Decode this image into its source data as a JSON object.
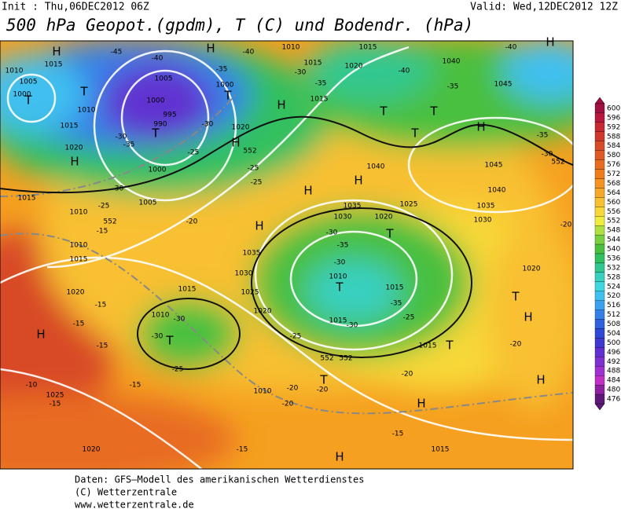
{
  "header": {
    "init": "Init : Thu,06DEC2012 06Z",
    "valid": "Valid: Wed,12DEC2012 12Z",
    "title": "500 hPa Geopot.(gpdm), T (C) und Bodendr. (hPa)"
  },
  "map": {
    "labels": [
      "H",
      "T",
      "T",
      "T",
      "H",
      "T",
      "H",
      "H",
      "H",
      "H",
      "H",
      "H",
      "T",
      "T",
      "T",
      "H",
      "T",
      "H",
      "H",
      "T",
      "T",
      "H",
      "H",
      "H",
      "T",
      "T",
      "T",
      "H",
      "1010",
      "1005",
      "1000",
      "1015",
      "1010",
      "1015",
      "1020",
      "1015",
      "1010",
      "1010",
      "1015",
      "1020",
      "1025",
      "1020",
      "1005",
      "1000",
      "995",
      "990",
      "1000",
      "1005",
      "1000",
      "1020",
      "1035",
      "1030",
      "1025",
      "1020",
      "1015",
      "1010",
      "1010",
      "1010",
      "1015",
      "1015",
      "1020",
      "1015",
      "1040",
      "1045",
      "1045",
      "1040",
      "1035",
      "1030",
      "1020",
      "1040",
      "1035",
      "1030",
      "1025",
      "1020",
      "1010",
      "1015",
      "1015",
      "1015",
      "1015",
      "-45",
      "-40",
      "-40",
      "-35",
      "-30",
      "-35",
      "-40",
      "-35",
      "-40",
      "-30",
      "-30",
      "-35",
      "-25",
      "-30",
      "-25",
      "-20",
      "-25",
      "-25",
      "-30",
      "-35",
      "-30",
      "-15",
      "-15",
      "-15",
      "-15",
      "-10",
      "-15",
      "-15",
      "-20",
      "-20",
      "-20",
      "-20",
      "-20",
      "-25",
      "-35",
      "-30",
      "-25",
      "-30",
      "-30",
      "-25",
      "-30",
      "-35",
      "-20",
      "-15",
      "-15",
      "552",
      "552",
      "552",
      "552",
      "552"
    ]
  },
  "colorbar": {
    "levels": [
      600,
      596,
      592,
      588,
      584,
      580,
      576,
      572,
      568,
      564,
      560,
      556,
      552,
      548,
      544,
      540,
      536,
      532,
      528,
      524,
      520,
      516,
      512,
      508,
      504,
      500,
      496,
      492,
      488,
      484,
      480,
      476
    ],
    "colors": [
      "#a01040",
      "#b8183c",
      "#c82832",
      "#d0382c",
      "#d84a28",
      "#e05a24",
      "#e86c20",
      "#f07c1c",
      "#f59220",
      "#f8a828",
      "#f8c030",
      "#f8d838",
      "#f0ec3c",
      "#b0e040",
      "#78d040",
      "#48c040",
      "#30c060",
      "#30c890",
      "#38d0c0",
      "#40d8e0",
      "#40c0f0",
      "#3aa0f0",
      "#3480e8",
      "#3060e0",
      "#3048d8",
      "#4038d0",
      "#6030d0",
      "#8030d0",
      "#a030d0",
      "#c030c8",
      "#9020a0",
      "#601878"
    ]
  },
  "footer": {
    "line1": "Daten: GFS–Modell des amerikanischen Wetterdienstes",
    "line2": "(C) Wetterzentrale",
    "line3": "www.wetterzentrale.de"
  }
}
